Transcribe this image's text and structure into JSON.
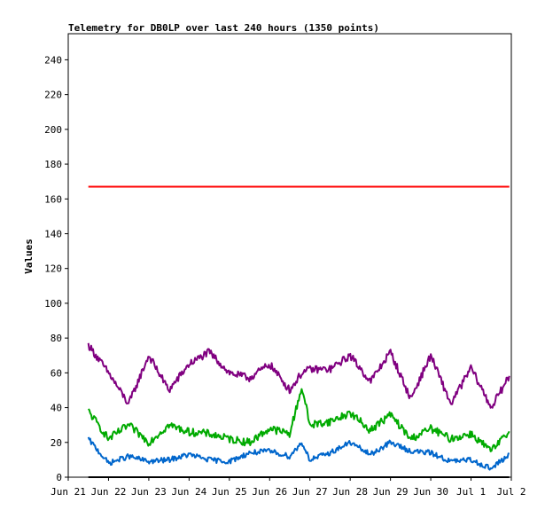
{
  "chart_data": {
    "type": "line",
    "title": "Telemetry for DB0LP over last 240 hours (1350 points)",
    "ylabel": "Values",
    "xlabel": "",
    "ylim": [
      0,
      255
    ],
    "xlim_days": [
      0,
      11
    ],
    "x_ticks": [
      "Jun 21",
      "Jun 22",
      "Jun 23",
      "Jun 24",
      "Jun 25",
      "Jun 26",
      "Jun 27",
      "Jun 28",
      "Jun 29",
      "Jun 30",
      "Jul 1",
      "Jul 2"
    ],
    "y_ticks": [
      0,
      20,
      40,
      60,
      80,
      100,
      120,
      140,
      160,
      180,
      200,
      220,
      240
    ],
    "grid": false,
    "legend": "none",
    "x_anchor_days": [
      0.5,
      1.0,
      1.5,
      2.0,
      2.5,
      3.0,
      3.5,
      4.0,
      4.5,
      5.0,
      5.5,
      5.8,
      6.0,
      6.5,
      7.0,
      7.5,
      8.0,
      8.5,
      9.0,
      9.5,
      10.0,
      10.5,
      10.95
    ],
    "series": [
      {
        "color": "#ff0000",
        "values": [
          167,
          167,
          167,
          167,
          167,
          167,
          167,
          167,
          167,
          167,
          167,
          167,
          167,
          167,
          167,
          167,
          167,
          167,
          167,
          167,
          167,
          167,
          167
        ]
      },
      {
        "color": "#800080",
        "values": [
          76,
          60,
          42,
          70,
          50,
          65,
          72,
          60,
          57,
          65,
          50,
          60,
          62,
          62,
          70,
          55,
          72,
          45,
          70,
          42,
          63,
          40,
          58
        ]
      },
      {
        "color": "#00aa00",
        "values": [
          38,
          22,
          30,
          20,
          30,
          26,
          25,
          22,
          20,
          28,
          25,
          52,
          30,
          32,
          37,
          27,
          36,
          22,
          28,
          22,
          25,
          15,
          26
        ]
      },
      {
        "color": "#0066cc",
        "values": [
          22,
          8,
          12,
          9,
          10,
          13,
          10,
          9,
          14,
          15,
          12,
          20,
          10,
          14,
          20,
          13,
          20,
          15,
          14,
          9,
          10,
          5,
          13
        ]
      },
      {
        "color": "#000000",
        "values": [
          0,
          0,
          0,
          0,
          0,
          0,
          0,
          0,
          0,
          0,
          0,
          0,
          0,
          0,
          0,
          0,
          0,
          0,
          0,
          0,
          0,
          0,
          0
        ]
      }
    ]
  }
}
